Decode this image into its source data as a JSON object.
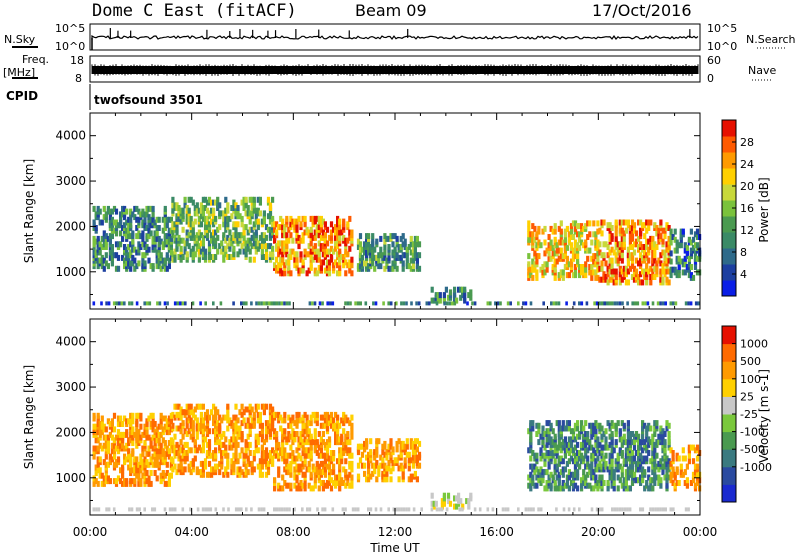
{
  "header": {
    "title": "Dome C East (fitACF)",
    "beam": "Beam 09",
    "date": "17/Oct/2016"
  },
  "top_panels": {
    "nsky": {
      "label": "N.Sky",
      "tick_top": "10^5",
      "tick_bottom": "10^0",
      "right_label": "N.Search",
      "right_tick_top": "10^5",
      "right_tick_bottom": "10^0"
    },
    "freq": {
      "label_line1": "Freq.",
      "label_line2": "[MHz]",
      "tick_top": "18",
      "tick_bottom": "8",
      "right_label": "Nave",
      "right_tick_top": "60",
      "right_tick_bottom": "0"
    },
    "cpid": {
      "label": "CPID",
      "value": "twofsound 3501"
    }
  },
  "x_axis": {
    "label": "Time UT",
    "ticks": [
      "00:00",
      "04:00",
      "08:00",
      "12:00",
      "16:00",
      "20:00",
      "00:00"
    ]
  },
  "chart_data": [
    {
      "type": "heatmap",
      "parameter": "power",
      "ylabel": "Slant Range [km]",
      "ylim": [
        180,
        4500
      ],
      "yticks": [
        1000,
        2000,
        3000,
        4000
      ],
      "xlim_hours": [
        0,
        24
      ],
      "colorbar": {
        "label": "Power [dB]",
        "ticks": [
          "28",
          "24",
          "20",
          "16",
          "12",
          "8",
          "4"
        ],
        "tick_values": [
          28,
          24,
          20,
          16,
          12,
          8,
          4
        ],
        "range": [
          0,
          32
        ],
        "colors": [
          "#0a1ee6",
          "#1c3fa0",
          "#2e6a8a",
          "#3a8a66",
          "#4a9a50",
          "#7ac23c",
          "#c8d83a",
          "#ffd000",
          "#ff9a00",
          "#ff5a00",
          "#e61000"
        ]
      },
      "echo_regions": [
        {
          "t": [
            0.1,
            3.2
          ],
          "r": [
            1000,
            2400
          ],
          "level": 0.3
        },
        {
          "t": [
            3.2,
            7.2
          ],
          "r": [
            1200,
            2600
          ],
          "level": 0.45
        },
        {
          "t": [
            7.2,
            10.3
          ],
          "r": [
            900,
            2200
          ],
          "level": 0.8
        },
        {
          "t": [
            10.5,
            13.0
          ],
          "r": [
            1000,
            1800
          ],
          "level": 0.35
        },
        {
          "t": [
            13.4,
            15.0
          ],
          "r": [
            300,
            600
          ],
          "level": 0.3
        },
        {
          "t": [
            17.2,
            20.0
          ],
          "r": [
            800,
            2100
          ],
          "level": 0.7
        },
        {
          "t": [
            20.0,
            22.8
          ],
          "r": [
            700,
            2100
          ],
          "level": 0.8
        },
        {
          "t": [
            22.8,
            24.0
          ],
          "r": [
            800,
            1900
          ],
          "level": 0.25
        }
      ]
    },
    {
      "type": "heatmap",
      "parameter": "velocity",
      "ylabel": "Slant Range [km]",
      "ylim": [
        180,
        4500
      ],
      "yticks": [
        1000,
        2000,
        3000,
        4000
      ],
      "xlim_hours": [
        0,
        24
      ],
      "colorbar": {
        "label": "Velocity [m s-1]",
        "ticks": [
          "1000",
          "500",
          "100",
          "25",
          "-25",
          "-100",
          "-500",
          "-1000"
        ],
        "colors": [
          "#1a2ad0",
          "#2a4aa0",
          "#3a7a80",
          "#4a9a50",
          "#7ac83c",
          "#c8c8c8",
          "#ffd000",
          "#ff9a00",
          "#ff6a00",
          "#e61000"
        ]
      },
      "echo_regions": [
        {
          "t": [
            0.1,
            3.2
          ],
          "r": [
            800,
            2400
          ],
          "sense": "away"
        },
        {
          "t": [
            3.2,
            7.2
          ],
          "r": [
            1000,
            2600
          ],
          "sense": "away"
        },
        {
          "t": [
            7.2,
            10.3
          ],
          "r": [
            700,
            2400
          ],
          "sense": "away"
        },
        {
          "t": [
            10.5,
            13.0
          ],
          "r": [
            900,
            1800
          ],
          "sense": "away"
        },
        {
          "t": [
            13.4,
            15.0
          ],
          "r": [
            300,
            600
          ],
          "sense": "slow"
        },
        {
          "t": [
            17.2,
            22.8
          ],
          "r": [
            700,
            2200
          ],
          "sense": "toward"
        },
        {
          "t": [
            22.8,
            24.0
          ],
          "r": [
            700,
            1700
          ],
          "sense": "away"
        }
      ]
    }
  ]
}
